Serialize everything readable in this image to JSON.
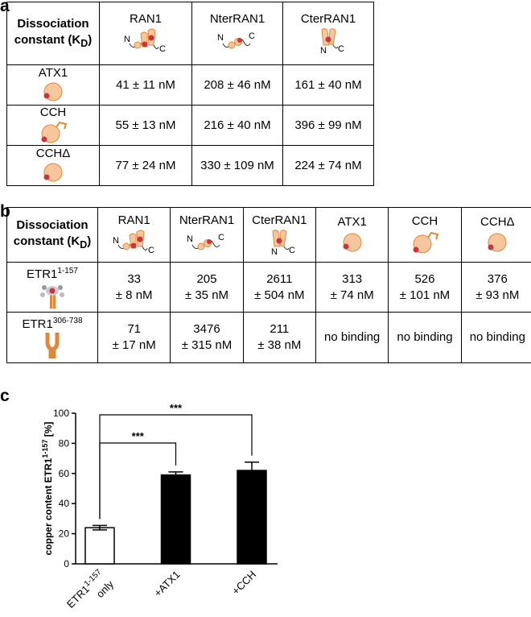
{
  "panel_a": {
    "label": "a",
    "corner": {
      "line1": "Dissociation",
      "line2": "constant (K",
      "sub": "D",
      "end": ")"
    },
    "columns": [
      {
        "name": "RAN1",
        "termini": [
          "N",
          "C"
        ]
      },
      {
        "name": "NterRAN1",
        "termini": [
          "N",
          "C"
        ]
      },
      {
        "name": "CterRAN1",
        "termini": [
          "N",
          "C"
        ]
      }
    ],
    "rows": [
      {
        "name": "ATX1",
        "cells": [
          "41 ± 11 nM",
          "208 ± 46 nM",
          "161 ± 40 nM"
        ]
      },
      {
        "name": "CCH",
        "cells": [
          "55 ± 13 nM",
          "216 ± 40 nM",
          "396 ± 99 nM"
        ]
      },
      {
        "name": "CCHΔ",
        "cells": [
          "77 ± 24 nM",
          "330 ± 109 nM",
          "224 ± 74 nM"
        ]
      }
    ]
  },
  "panel_b": {
    "label": "b",
    "corner": {
      "line1": "Dissociation",
      "line2": "constant (K",
      "sub": "D",
      "end": ")"
    },
    "columns": [
      {
        "name": "RAN1",
        "termini": [
          "N",
          "C"
        ]
      },
      {
        "name": "NterRAN1",
        "termini": [
          "N",
          "C"
        ]
      },
      {
        "name": "CterRAN1",
        "termini": [
          "N",
          "C"
        ]
      },
      {
        "name": "ATX1"
      },
      {
        "name": "CCH"
      },
      {
        "name": "CCHΔ"
      }
    ],
    "rows": [
      {
        "name": "ETR1",
        "sup": "1-157",
        "cells": [
          [
            "33",
            "± 8 nM"
          ],
          [
            "205",
            "± 35 nM"
          ],
          [
            "2611",
            "± 504 nM"
          ],
          [
            "313",
            "± 74 nM"
          ],
          [
            "526",
            "± 101 nM"
          ],
          [
            "376",
            "± 93 nM"
          ]
        ]
      },
      {
        "name": "ETR1",
        "sup": "306-738",
        "cells": [
          [
            "71",
            "± 17 nM"
          ],
          [
            "3476",
            "± 315 nM"
          ],
          [
            "211",
            "± 38 nM"
          ],
          [
            "no binding"
          ],
          [
            "no binding"
          ],
          [
            "no binding"
          ]
        ]
      }
    ]
  },
  "panel_c": {
    "label": "c"
  },
  "chart_data": {
    "type": "bar",
    "ylabel": {
      "text": "copper content ETR1",
      "sup": "1-157",
      "end": " [%]"
    },
    "categories": [
      {
        "text": "ETR1",
        "sup": "1-157",
        "line2": "only"
      },
      {
        "text": "+ATX1"
      },
      {
        "text": "+CCH"
      }
    ],
    "values": [
      24,
      59,
      62
    ],
    "errors": [
      1.5,
      2,
      5.5
    ],
    "colors": [
      "#ffffff",
      "#000000",
      "#000000"
    ],
    "ylim": [
      0,
      100
    ],
    "yticks": [
      0,
      20,
      40,
      60,
      80,
      100
    ],
    "annotations": [
      {
        "label": "***",
        "between": [
          0,
          1
        ]
      },
      {
        "label": "***",
        "between": [
          0,
          2
        ]
      }
    ]
  }
}
